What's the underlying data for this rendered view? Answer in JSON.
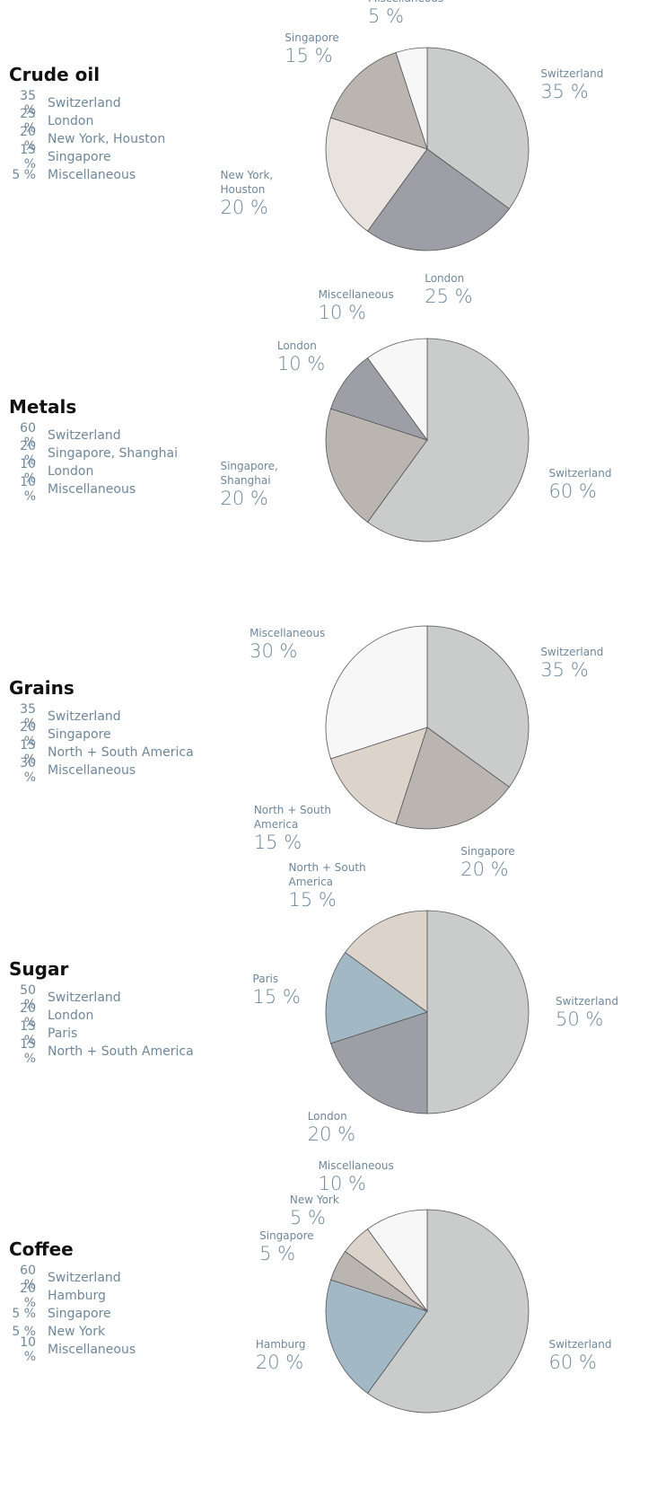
{
  "chart_data": [
    {
      "type": "pie",
      "title": "Crude oil",
      "categories": [
        "Switzerland",
        "London",
        "New York, Houston",
        "Singapore",
        "Miscellaneous"
      ],
      "values": [
        35,
        25,
        20,
        15,
        5
      ],
      "value_labels": [
        "35 %",
        "25 %",
        "20 %",
        "15 %",
        "5 %"
      ],
      "colors": [
        "#c9cccb",
        "#9e9ea6",
        "#e8e3de",
        "#bbb5b2",
        "#f7f7f7"
      ]
    },
    {
      "type": "pie",
      "title": "Metals",
      "categories": [
        "Switzerland",
        "Singapore, Shanghai",
        "London",
        "Miscellaneous"
      ],
      "values": [
        60,
        20,
        10,
        10
      ],
      "value_labels": [
        "60 %",
        "20 %",
        "10 %",
        "10 %"
      ],
      "colors": [
        "#c9cccb",
        "#bbb5b2",
        "#9e9ea6",
        "#f7f7f7"
      ]
    },
    {
      "type": "pie",
      "title": "Grains",
      "categories": [
        "Switzerland",
        "Singapore",
        "North + South America",
        "Miscellaneous"
      ],
      "values": [
        35,
        20,
        15,
        30
      ],
      "value_labels": [
        "35 %",
        "20 %",
        "15 %",
        "30 %"
      ],
      "colors": [
        "#c9cccb",
        "#bbb5b2",
        "#dcd3cb",
        "#f7f7f7"
      ]
    },
    {
      "type": "pie",
      "title": "Sugar",
      "categories": [
        "Switzerland",
        "London",
        "Paris",
        "North + South America"
      ],
      "values": [
        50,
        20,
        15,
        15
      ],
      "value_labels": [
        "50 %",
        "20 %",
        "15 %",
        "15 %"
      ],
      "colors": [
        "#c9cccb",
        "#9e9ea6",
        "#a2b8c5",
        "#dcd3cb"
      ]
    },
    {
      "type": "pie",
      "title": "Coffee",
      "categories": [
        "Switzerland",
        "Hamburg",
        "Singapore",
        "New York",
        "Miscellaneous"
      ],
      "values": [
        60,
        20,
        5,
        5,
        10
      ],
      "value_labels": [
        "60 %",
        "20 %",
        "5 %",
        "5 %",
        "10 %"
      ],
      "colors": [
        "#c9cccb",
        "#a2b8c5",
        "#bbb5b2",
        "#dcd3cb",
        "#f7f7f7"
      ]
    }
  ]
}
